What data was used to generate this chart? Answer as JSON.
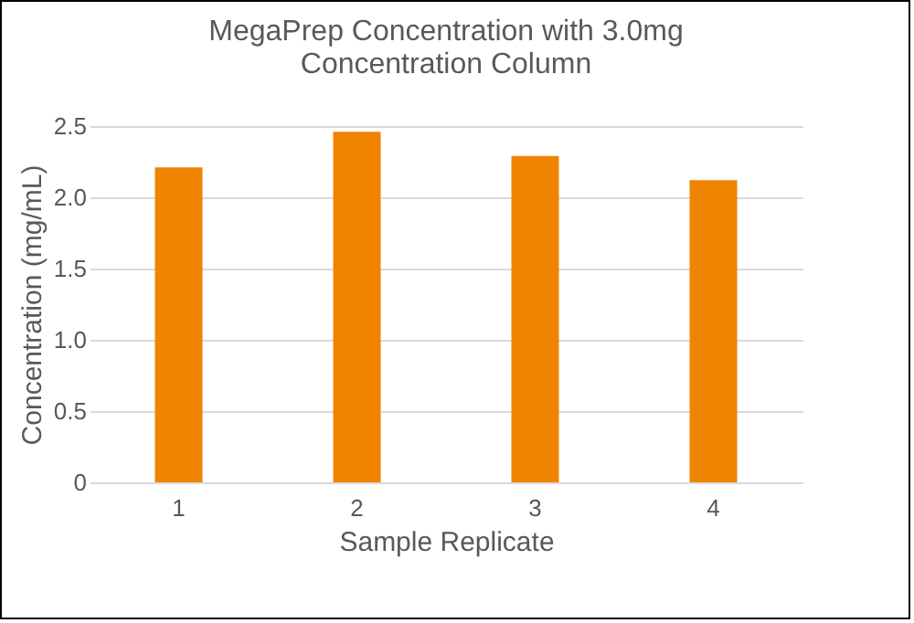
{
  "chart_data": {
    "type": "bar",
    "title": [
      "MegaPrep Concentration with 3.0mg",
      "Concentration Column"
    ],
    "xlabel": "Sample Replicate",
    "ylabel": "Concentration (mg/mL)",
    "categories": [
      "1",
      "2",
      "3",
      "4"
    ],
    "values": [
      2.21,
      2.46,
      2.29,
      2.12
    ],
    "color": "#f08300",
    "ylim": [
      0,
      2.5
    ],
    "yticks": [
      0,
      {
        "value": 0.5,
        "label": "0.5"
      },
      {
        "value": 1,
        "label": "1.0"
      },
      {
        "value": 1.5,
        "label": "1.5"
      },
      {
        "value": 2,
        "label": "2.0"
      },
      {
        "value": 2.5,
        "label": "2.5"
      }
    ],
    "grid": "y"
  }
}
